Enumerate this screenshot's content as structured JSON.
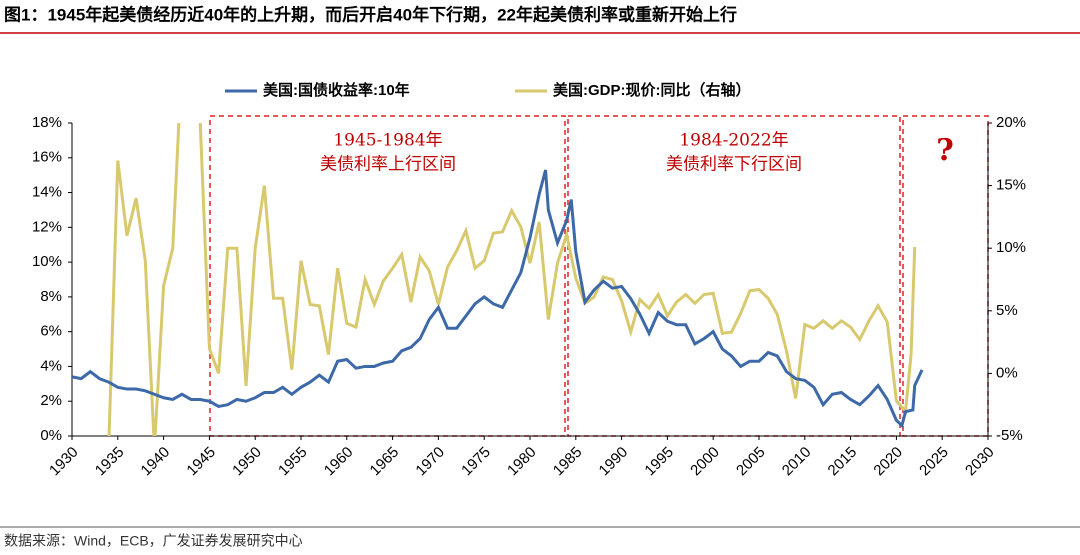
{
  "title": "图1：1945年起美债经历近40年的上升期，而后开启40年下行期，22年起美债利率或重新开始上行",
  "source": "数据来源：Wind，ECB，广发证券发展研究中心",
  "chart_data": {
    "type": "line",
    "xlim": [
      1930,
      2030
    ],
    "xticks": [
      1930,
      1935,
      1940,
      1945,
      1950,
      1955,
      1960,
      1965,
      1970,
      1975,
      1980,
      1985,
      1990,
      1995,
      2000,
      2005,
      2010,
      2015,
      2020,
      2025,
      2030
    ],
    "ylim": [
      0,
      18
    ],
    "yticks": [
      {
        "value": 0,
        "label": "0%"
      },
      {
        "value": 2,
        "label": "2%"
      },
      {
        "value": 4,
        "label": "4%"
      },
      {
        "value": 6,
        "label": "6%"
      },
      {
        "value": 8,
        "label": "8%"
      },
      {
        "value": 10,
        "label": "10%"
      },
      {
        "value": 12,
        "label": "12%"
      },
      {
        "value": 14,
        "label": "14%"
      },
      {
        "value": 16,
        "label": "16%"
      },
      {
        "value": 18,
        "label": "18%"
      }
    ],
    "y2lim": [
      -5,
      20
    ],
    "y2ticks": [
      {
        "value": -5,
        "label": "-5%"
      },
      {
        "value": 0,
        "label": "0%"
      },
      {
        "value": 5,
        "label": "5%"
      },
      {
        "value": 10,
        "label": "10%"
      },
      {
        "value": 15,
        "label": "15%"
      },
      {
        "value": 20,
        "label": "20%"
      }
    ],
    "legend": "top",
    "annotations": [
      "1945-1984年",
      "美债利率上行区间",
      "1984-2022年",
      "美债利率下行区间",
      "?"
    ],
    "series": [
      {
        "name": "美国:国债收益率:10年",
        "color": "#3d69a8",
        "axis": "y",
        "x": [
          1930,
          1931,
          1932,
          1933,
          1934,
          1935,
          1936,
          1937,
          1938,
          1939,
          1940,
          1941,
          1942,
          1943,
          1944,
          1945,
          1946,
          1947,
          1948,
          1949,
          1950,
          1951,
          1952,
          1953,
          1954,
          1955,
          1956,
          1957,
          1958,
          1959,
          1960,
          1961,
          1962,
          1963,
          1964,
          1965,
          1966,
          1967,
          1968,
          1969,
          1970,
          1971,
          1972,
          1973,
          1974,
          1975,
          1976,
          1977,
          1978,
          1979,
          1980,
          1981,
          1981.7,
          1982,
          1983,
          1984,
          1984.5,
          1985,
          1986,
          1987,
          1988,
          1989,
          1990,
          1991,
          1992,
          1993,
          1994,
          1995,
          1996,
          1997,
          1998,
          1999,
          2000,
          2001,
          2002,
          2003,
          2004,
          2005,
          2006,
          2007,
          2008,
          2009,
          2010,
          2011,
          2012,
          2013,
          2014,
          2015,
          2016,
          2017,
          2018,
          2019,
          2020,
          2020.6,
          2021,
          2021.8,
          2022,
          2022.8
        ],
        "values": [
          3.4,
          3.3,
          3.7,
          3.3,
          3.1,
          2.8,
          2.7,
          2.7,
          2.6,
          2.4,
          2.2,
          2.1,
          2.4,
          2.1,
          2.1,
          2.0,
          1.7,
          1.8,
          2.1,
          2.0,
          2.2,
          2.5,
          2.5,
          2.8,
          2.4,
          2.8,
          3.1,
          3.5,
          3.1,
          4.3,
          4.4,
          3.9,
          4.0,
          4.0,
          4.2,
          4.3,
          4.9,
          5.1,
          5.6,
          6.7,
          7.4,
          6.2,
          6.2,
          6.9,
          7.6,
          8.0,
          7.6,
          7.4,
          8.4,
          9.4,
          11.4,
          13.9,
          15.3,
          13.0,
          11.1,
          12.4,
          13.6,
          10.6,
          7.7,
          8.4,
          8.9,
          8.5,
          8.6,
          7.9,
          7.0,
          5.9,
          7.1,
          6.6,
          6.4,
          6.4,
          5.3,
          5.6,
          6.0,
          5.0,
          4.6,
          4.0,
          4.3,
          4.3,
          4.8,
          4.6,
          3.7,
          3.3,
          3.2,
          2.8,
          1.8,
          2.4,
          2.5,
          2.1,
          1.8,
          2.3,
          2.9,
          2.1,
          0.9,
          0.6,
          1.4,
          1.5,
          2.9,
          3.8
        ]
      },
      {
        "name": "美国:GDP:现价:同比（右轴）",
        "color": "#d9c96e",
        "axis": "y2",
        "x": [
          1934,
          1935,
          1936,
          1937,
          1938,
          1939,
          1940,
          1941,
          1942,
          1943,
          1944,
          1945,
          1946,
          1947,
          1948,
          1949,
          1950,
          1951,
          1952,
          1953,
          1954,
          1955,
          1956,
          1957,
          1958,
          1959,
          1960,
          1961,
          1962,
          1963,
          1964,
          1965,
          1966,
          1967,
          1968,
          1969,
          1970,
          1971,
          1972,
          1973,
          1974,
          1975,
          1976,
          1977,
          1978,
          1979,
          1980,
          1981,
          1982,
          1983,
          1984,
          1985,
          1986,
          1987,
          1988,
          1989,
          1990,
          1991,
          1992,
          1993,
          1994,
          1995,
          1996,
          1997,
          1998,
          1999,
          2000,
          2001,
          2002,
          2003,
          2004,
          2005,
          2006,
          2007,
          2008,
          2009,
          2010,
          2011,
          2012,
          2013,
          2014,
          2015,
          2016,
          2017,
          2018,
          2019,
          2020,
          2021,
          2021.6,
          2022
        ],
        "values": [
          -6,
          17,
          11,
          14,
          9,
          -6,
          7,
          10,
          25,
          27,
          20,
          2,
          0,
          10,
          10,
          -1,
          10,
          15,
          6,
          6,
          0.3,
          9,
          5.5,
          5.4,
          1.5,
          8.4,
          4,
          3.7,
          7.5,
          5.5,
          7.4,
          8.4,
          9.5,
          5.7,
          9.3,
          8.2,
          5.5,
          8.5,
          9.8,
          11.4,
          8.4,
          9.0,
          11.2,
          11.3,
          13.0,
          11.7,
          8.8,
          12.1,
          4.3,
          8.8,
          11.1,
          7.6,
          5.6,
          6.1,
          7.7,
          7.5,
          5.8,
          3.3,
          5.9,
          5.2,
          6.3,
          4.6,
          5.7,
          6.3,
          5.6,
          6.3,
          6.4,
          3.2,
          3.3,
          4.8,
          6.6,
          6.7,
          6.0,
          4.7,
          1.8,
          -2.0,
          3.9,
          3.6,
          4.2,
          3.6,
          4.2,
          3.7,
          2.7,
          4.2,
          5.4,
          4.1,
          -2.2,
          -3.0,
          1.5,
          10.1
        ]
      }
    ]
  }
}
